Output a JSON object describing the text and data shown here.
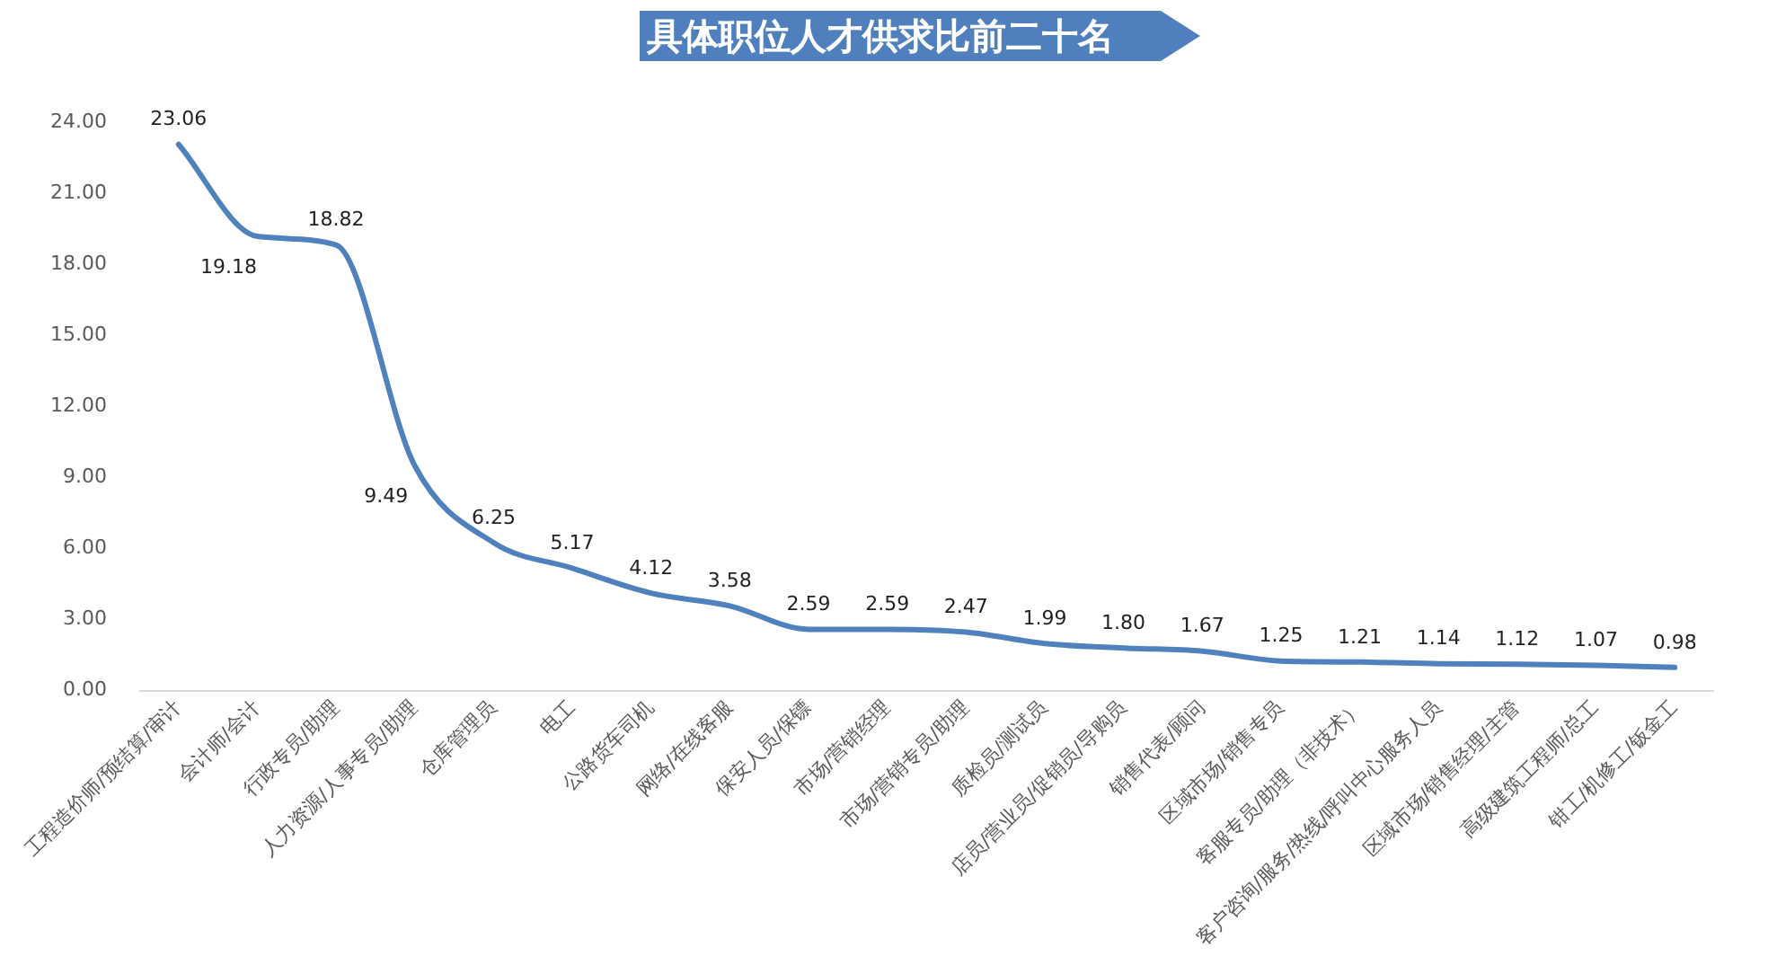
{
  "chart_data": {
    "type": "line",
    "title": "具体职位人才供求比前二十名",
    "categories": [
      "工程造价师/预结算/审计",
      "会计师/会计",
      "行政专员/助理",
      "人力资源/人事专员/助理",
      "仓库管理员",
      "电工",
      "公路货车司机",
      "网络/在线客服",
      "保安人员/保镖",
      "市场/营销经理",
      "市场/营销专员/助理",
      "质检员/测试员",
      "店员/营业员/促销员/导购员",
      "销售代表/顾问",
      "区域市场/销售专员",
      "客服专员/助理（非技术）",
      "客户咨询/服务/热线/呼叫中心服务人员",
      "区域市场/销售经理/主管",
      "高级建筑工程师/总工",
      "钳工/机修工/钣金工"
    ],
    "series": [
      {
        "color": "#4f81bd",
        "values": [
          23.06,
          19.18,
          18.82,
          9.49,
          6.25,
          5.17,
          4.12,
          3.58,
          2.59,
          2.59,
          2.47,
          1.99,
          1.8,
          1.67,
          1.25,
          1.21,
          1.14,
          1.12,
          1.07,
          0.98
        ],
        "value_labels": [
          "23.06",
          "19.18",
          "18.82",
          "9.49",
          "6.25",
          "5.17",
          "4.12",
          "3.58",
          "2.59",
          "2.59",
          "2.47",
          "1.99",
          "1.80",
          "1.67",
          "1.25",
          "1.21",
          "1.14",
          "1.12",
          "1.07",
          "0.98"
        ]
      }
    ],
    "ylim": [
      0,
      24
    ],
    "yticks": [
      {
        "value": 0,
        "label": "0.00"
      },
      {
        "value": 3,
        "label": "3.00"
      },
      {
        "value": 6,
        "label": "6.00"
      },
      {
        "value": 9,
        "label": "9.00"
      },
      {
        "value": 12,
        "label": "12.00"
      },
      {
        "value": 15,
        "label": "15.00"
      },
      {
        "value": 18,
        "label": "18.00"
      },
      {
        "value": 21,
        "label": "21.00"
      },
      {
        "value": 24,
        "label": "24.00"
      }
    ],
    "grid": false,
    "legend": false,
    "marker": "none",
    "line_style": "solid"
  }
}
